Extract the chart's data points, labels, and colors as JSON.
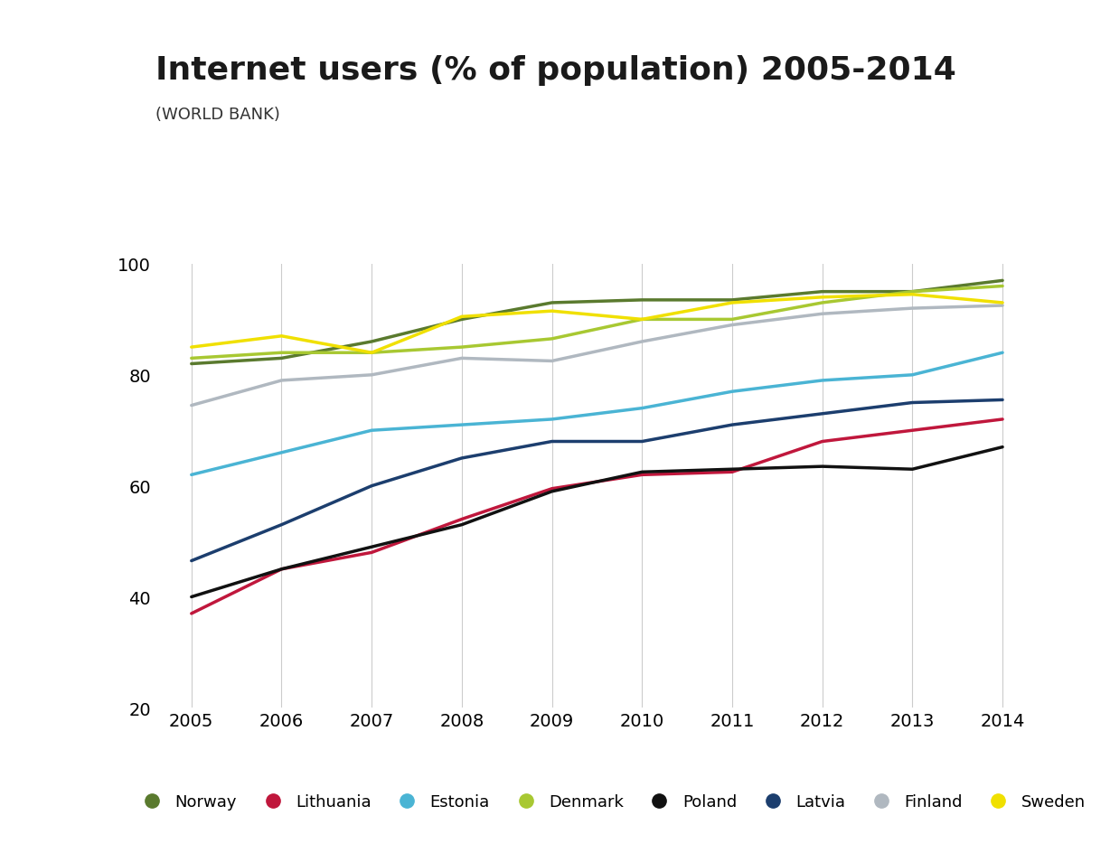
{
  "title": "Internet users (% of population) 2005-2014",
  "subtitle": "(WORLD BANK)",
  "years": [
    2005,
    2006,
    2007,
    2008,
    2009,
    2010,
    2011,
    2012,
    2013,
    2014
  ],
  "series": {
    "Norway": [
      82.0,
      83.0,
      86.0,
      90.0,
      93.0,
      93.5,
      93.5,
      95.0,
      95.0,
      97.0
    ],
    "Lithuania": [
      37.0,
      45.0,
      48.0,
      54.0,
      59.5,
      62.0,
      62.5,
      68.0,
      70.0,
      72.0
    ],
    "Estonia": [
      62.0,
      66.0,
      70.0,
      71.0,
      72.0,
      74.0,
      77.0,
      79.0,
      80.0,
      84.0
    ],
    "Denmark": [
      83.0,
      84.0,
      84.0,
      85.0,
      86.5,
      90.0,
      90.0,
      93.0,
      95.0,
      96.0
    ],
    "Poland": [
      40.0,
      45.0,
      49.0,
      53.0,
      59.0,
      62.5,
      63.0,
      63.5,
      63.0,
      67.0
    ],
    "Latvia": [
      46.5,
      53.0,
      60.0,
      65.0,
      68.0,
      68.0,
      71.0,
      73.0,
      75.0,
      75.5
    ],
    "Finland": [
      74.5,
      79.0,
      80.0,
      83.0,
      82.5,
      86.0,
      89.0,
      91.0,
      92.0,
      92.5
    ],
    "Sweden": [
      85.0,
      87.0,
      84.0,
      90.5,
      91.5,
      90.0,
      93.0,
      94.0,
      94.5,
      93.0
    ]
  },
  "colors": {
    "Norway": "#5a7a2e",
    "Lithuania": "#c0173c",
    "Estonia": "#4ab4d4",
    "Denmark": "#a8c832",
    "Poland": "#111111",
    "Latvia": "#1c3e6e",
    "Finland": "#b0b8c0",
    "Sweden": "#f0e000"
  },
  "ylim": [
    20,
    100
  ],
  "yticks": [
    20,
    40,
    60,
    80,
    100
  ],
  "background_color": "#ffffff",
  "title_fontsize": 26,
  "subtitle_fontsize": 13,
  "tick_fontsize": 14,
  "linewidth": 2.5
}
